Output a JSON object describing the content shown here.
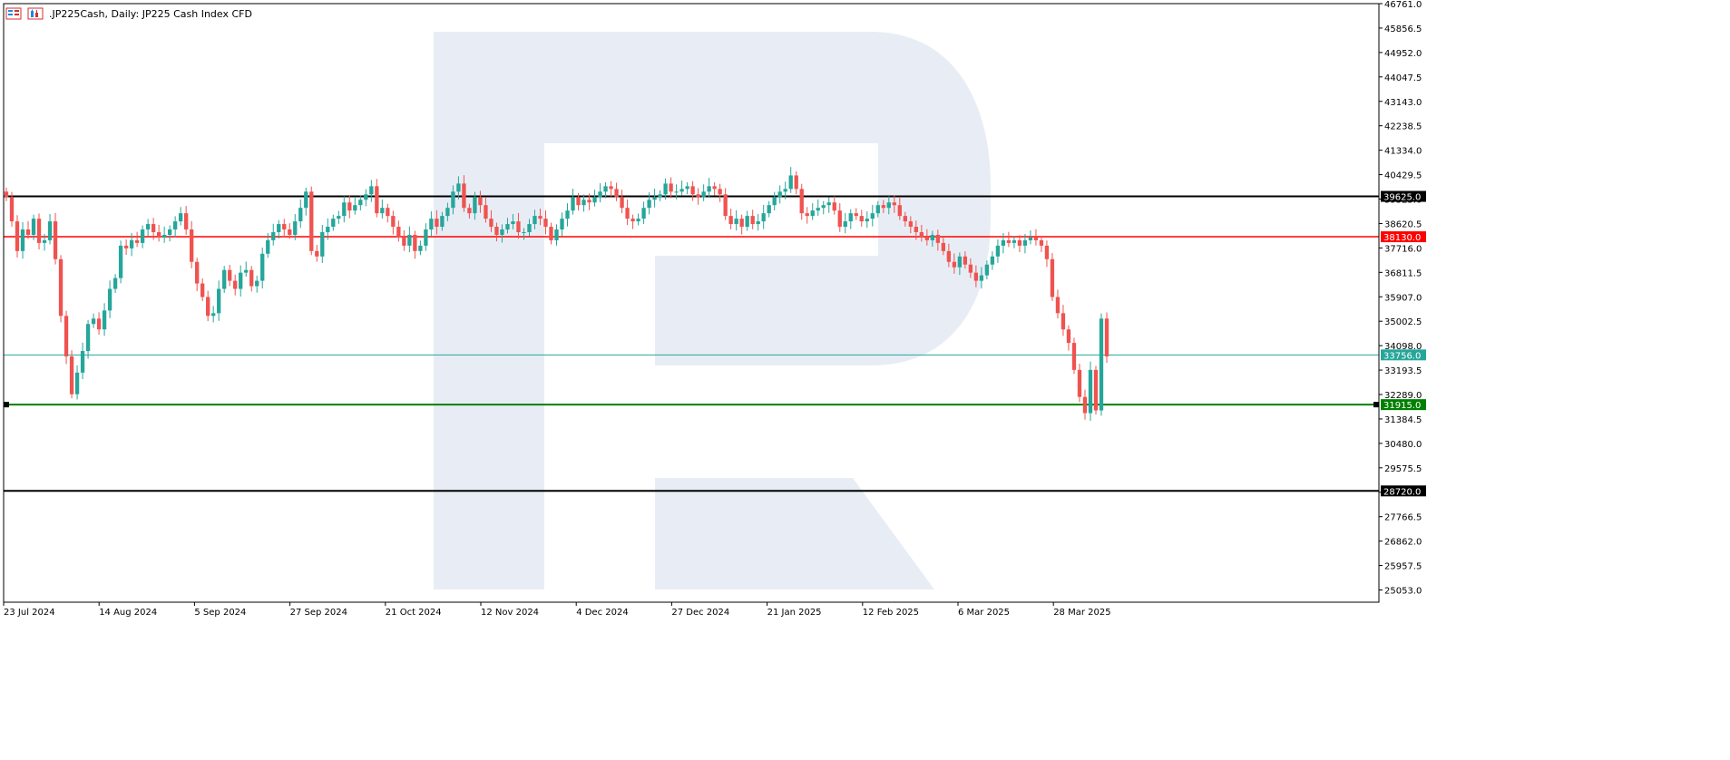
{
  "header": {
    "title": ".JP225Cash, Daily:  JP225 Cash Index CFD"
  },
  "colors": {
    "bull": "#26a69a",
    "bear": "#ef5350",
    "grid_border": "#000000",
    "watermark": "#e8edf5",
    "level_black": "#000000",
    "level_red": "#ff0000",
    "level_green": "#008000",
    "current_price_line": "#26a69a"
  },
  "chart_data": {
    "type": "candlestick",
    "symbol": ".JP225Cash",
    "timeframe": "Daily",
    "ylim": [
      24600,
      46761
    ],
    "y_ticks": [
      "46761.0",
      "45856.5",
      "44952.0",
      "44047.5",
      "43143.0",
      "42238.5",
      "41334.0",
      "40429.5",
      "39525.0",
      "38620.5",
      "37716.0",
      "36811.5",
      "35907.0",
      "35002.5",
      "34098.0",
      "33193.5",
      "32289.0",
      "31384.5",
      "30480.0",
      "29575.5",
      "28671.0",
      "27766.5",
      "26862.0",
      "25957.5",
      "25053.0"
    ],
    "x_labels": [
      "23 Jul 2024",
      "14 Aug 2024",
      "5 Sep 2024",
      "27 Sep 2024",
      "21 Oct 2024",
      "12 Nov 2024",
      "4 Dec 2024",
      "27 Dec 2024",
      "21 Jan 2025",
      "12 Feb 2025",
      "6 Mar 2025",
      "28 Mar 2025"
    ],
    "levels": [
      {
        "label": "39625.0",
        "value": 39625,
        "style": "black"
      },
      {
        "label": "38130.0",
        "value": 38130,
        "style": "red"
      },
      {
        "label": "33756.0",
        "value": 33756,
        "style": "current"
      },
      {
        "label": "31915.0",
        "value": 31915,
        "style": "green"
      },
      {
        "label": "28720.0",
        "value": 28720,
        "style": "black"
      }
    ],
    "closes": [
      39600,
      38700,
      37600,
      38400,
      38200,
      38800,
      37900,
      38000,
      38700,
      37300,
      35200,
      33700,
      32300,
      33100,
      33900,
      34900,
      35100,
      34700,
      35400,
      36200,
      36600,
      37800,
      37700,
      38000,
      37900,
      38400,
      38600,
      38300,
      38100,
      38200,
      38400,
      38700,
      39000,
      38400,
      37200,
      36400,
      35900,
      35200,
      35300,
      36200,
      36900,
      36500,
      36200,
      36800,
      36900,
      36300,
      36500,
      37500,
      38000,
      38300,
      38600,
      38400,
      38200,
      38700,
      39200,
      39800,
      37600,
      37400,
      38300,
      38500,
      38800,
      38900,
      39400,
      39100,
      39300,
      39500,
      39700,
      40000,
      39000,
      39200,
      38900,
      38500,
      38100,
      37800,
      38200,
      37600,
      37800,
      38400,
      38800,
      38500,
      38900,
      39200,
      39800,
      40100,
      39200,
      39000,
      39600,
      39300,
      38800,
      38500,
      38200,
      38400,
      38600,
      38700,
      38300,
      38300,
      38600,
      38900,
      38800,
      38500,
      38000,
      38400,
      38800,
      39100,
      39600,
      39300,
      39500,
      39400,
      39600,
      39800,
      40000,
      39900,
      39600,
      39200,
      38800,
      38700,
      38800,
      39200,
      39500,
      39600,
      39700,
      40100,
      39800,
      39800,
      39900,
      40000,
      39700,
      39600,
      39800,
      40000,
      39900,
      39700,
      38900,
      38600,
      38800,
      38500,
      38900,
      38600,
      38700,
      39000,
      39300,
      39600,
      39800,
      39900,
      40400,
      39900,
      39000,
      38900,
      39100,
      39200,
      39300,
      39400,
      39100,
      38500,
      38700,
      39000,
      38900,
      38700,
      38800,
      39000,
      39300,
      39200,
      39400,
      39300,
      38900,
      38700,
      38500,
      38300,
      38100,
      38000,
      38200,
      37900,
      37600,
      37200,
      37000,
      37400,
      37100,
      36800,
      36500,
      36700,
      37100,
      37400,
      37800,
      38000,
      37900,
      38000,
      37800,
      38000,
      38100,
      38000,
      37800,
      37300,
      35900,
      35300,
      34700,
      34200,
      33200,
      32200,
      31600,
      33200,
      31700,
      35100,
      33700
    ]
  }
}
